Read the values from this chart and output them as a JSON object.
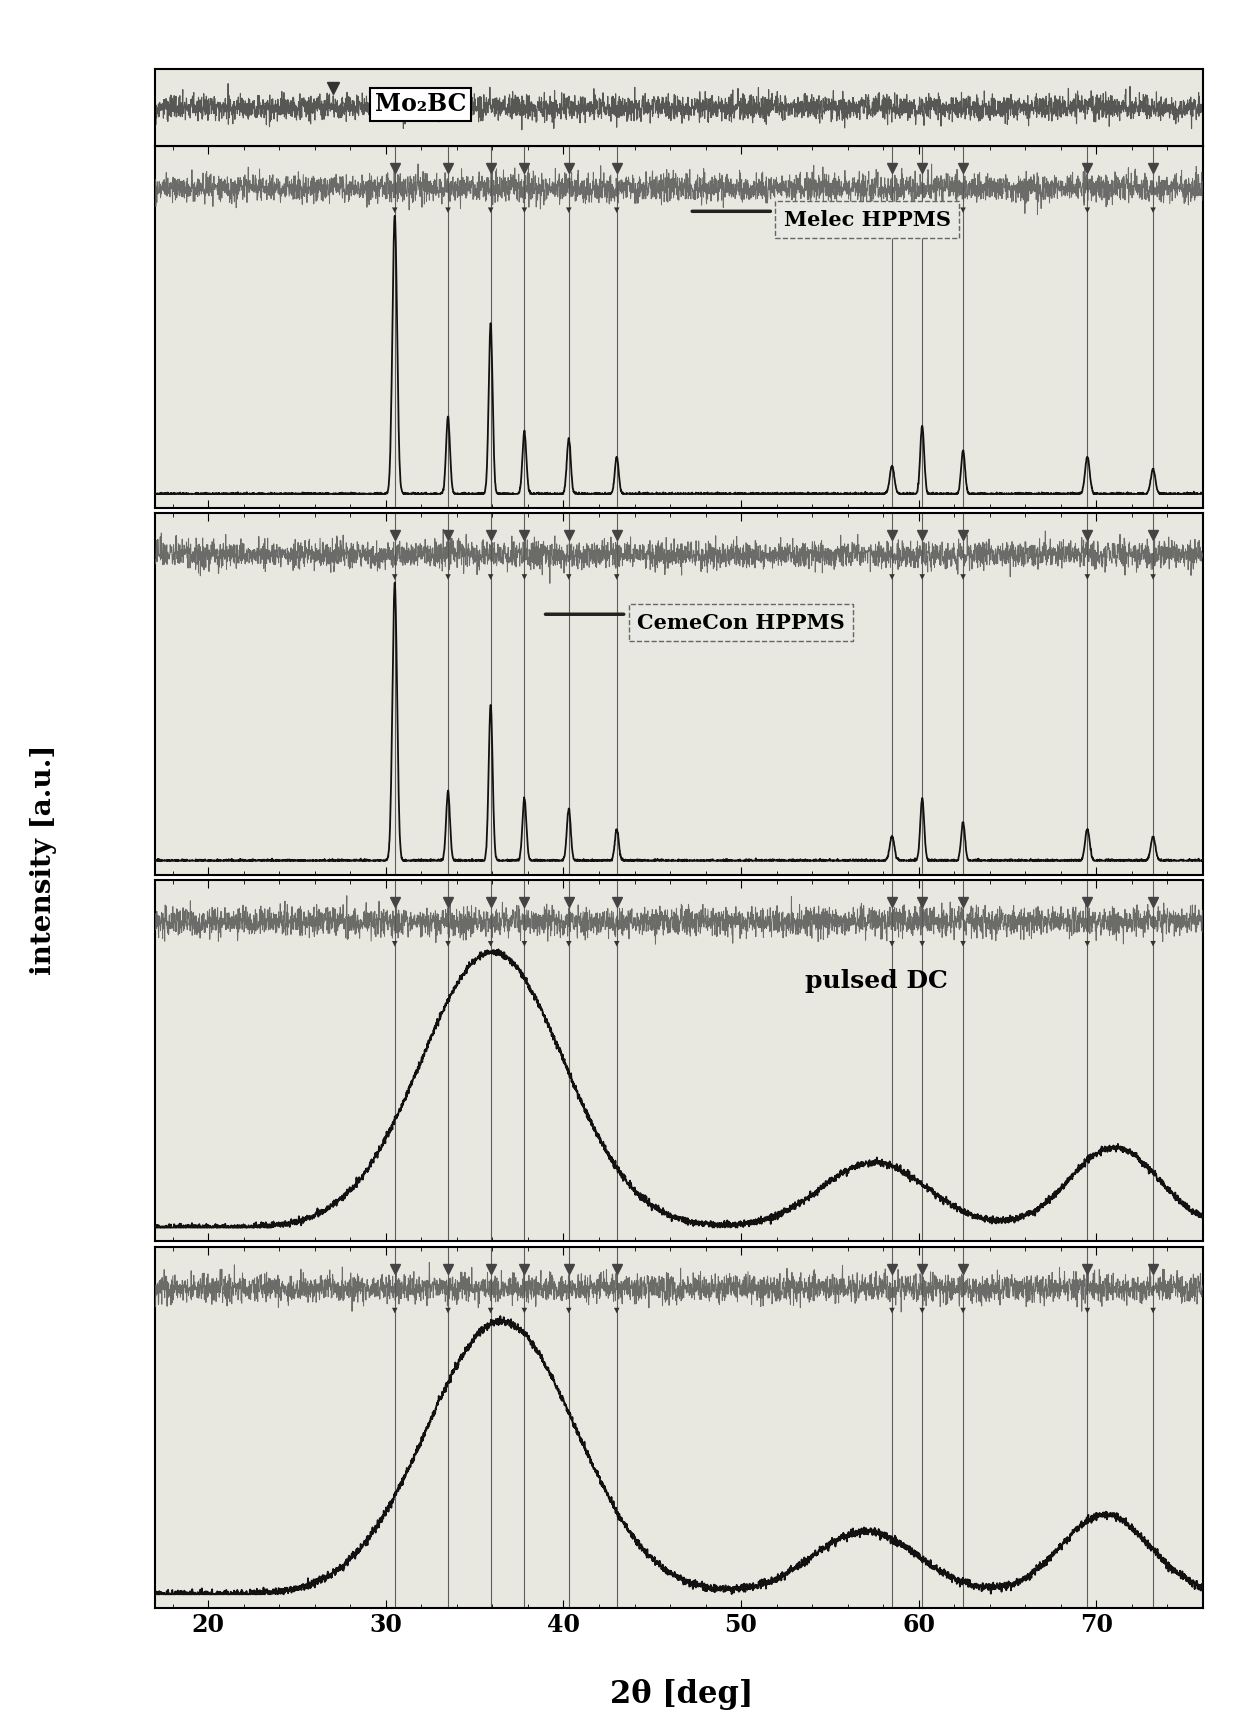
{
  "xlabel": "2θ [deg]",
  "ylabel": "intensity [a.u.]",
  "xlim": [
    17,
    76
  ],
  "xticklabels": [
    "20",
    "30",
    "40",
    "50",
    "60",
    "70"
  ],
  "xticks": [
    20,
    30,
    40,
    50,
    60,
    70
  ],
  "legend_marker_label": "Mo₂BC",
  "panel_labels": [
    "Melec HPPMS",
    "CemeCon HPPMS",
    "pulsed DC",
    ""
  ],
  "background_color": "#f5f5f0",
  "line_color": "#111111",
  "vline_positions": [
    30.5,
    33.5,
    35.9,
    37.8,
    40.3,
    43.0,
    58.5,
    60.2,
    62.5,
    69.5,
    73.2
  ],
  "num_panels": 4
}
